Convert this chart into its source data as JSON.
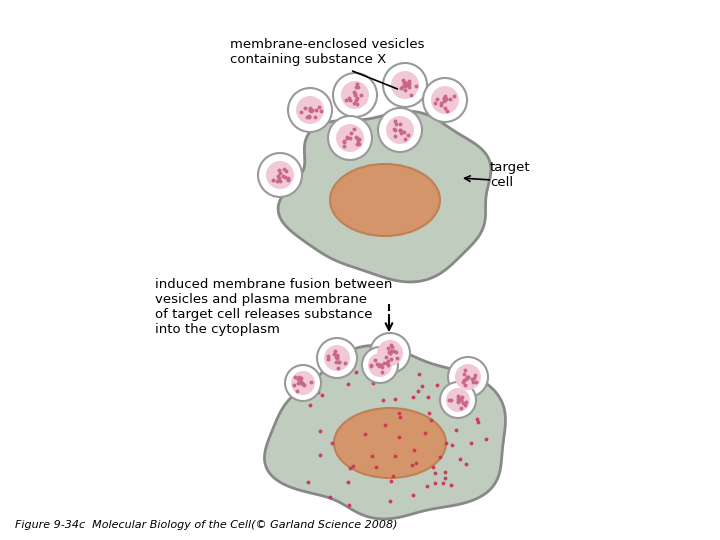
{
  "bg_color": "#ffffff",
  "cell_color": "#c0ccbe",
  "cell_edge_color": "#888888",
  "nucleus_color": "#d4956a",
  "nucleus_edge_color": "#bf8055",
  "vesicle_outer_color": "#999999",
  "vesicle_inner_color": "#f0c8d8",
  "vesicle_dot_color": "#cc6688",
  "substance_dot_color": "#cc3355",
  "text_color": "#000000",
  "label_vesicles": "membrane-enclosed vesicles\ncontaining substance X",
  "label_target": "target\ncell",
  "label_fusion": "induced membrane fusion between\nvesicles and plasma membrane\nof target cell releases substance\ninto the cytoplasm",
  "caption": "Figure 9-34c  Molecular Biology of the Cell(© Garland Science 2008)"
}
